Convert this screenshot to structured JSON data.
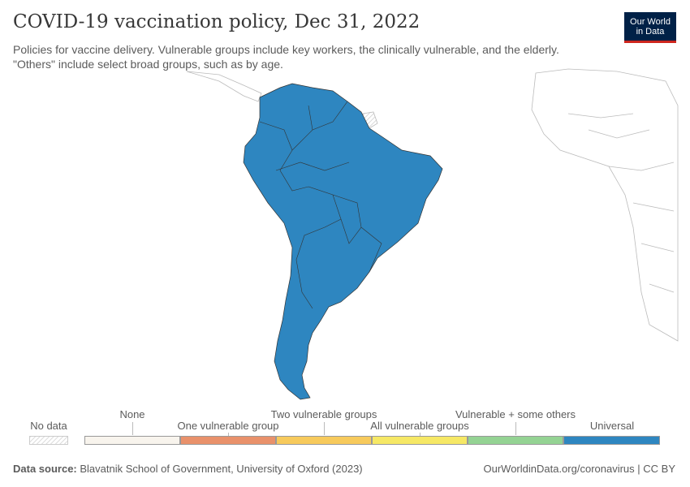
{
  "title": "COVID-19 vaccination policy, Dec 31, 2022",
  "subtitle": "Policies for vaccine delivery. Vulnerable groups include key workers, the clinically vulnerable, and the elderly. \"Others\" include select broad groups, such as by age.",
  "logo": {
    "line1": "Our World",
    "line2": "in Data"
  },
  "legend": {
    "no_data": "No data",
    "bins": [
      {
        "label": "None",
        "color": "#f8f4ed"
      },
      {
        "label": "One vulnerable group",
        "color": "#e9916b"
      },
      {
        "label": "Two vulnerable groups",
        "color": "#f7ca5c"
      },
      {
        "label": "All vulnerable groups",
        "color": "#f6e865"
      },
      {
        "label": "Vulnerable + some others",
        "color": "#94d393"
      },
      {
        "label": "Universal",
        "color": "#2e86c0"
      }
    ]
  },
  "footer": {
    "source_label": "Data source:",
    "source": "Blavatnik School of Government, University of Oxford (2023)",
    "link": "OurWorldinData.org/coronavirus | CC BY"
  }
}
